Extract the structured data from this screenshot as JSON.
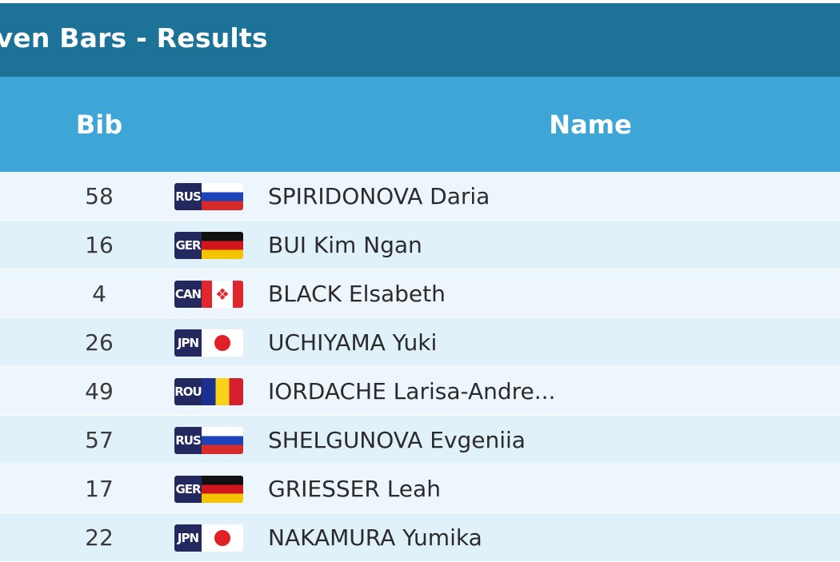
{
  "header": {
    "title": "even Bars - Results"
  },
  "table": {
    "columns": {
      "bib": "Bib",
      "name": "Name"
    },
    "rows": [
      {
        "bib": "58",
        "noc": "RUS",
        "flag": "rus",
        "name": "SPIRIDONOVA Daria"
      },
      {
        "bib": "16",
        "noc": "GER",
        "flag": "ger",
        "name": "BUI Kim Ngan"
      },
      {
        "bib": "4",
        "noc": "CAN",
        "flag": "can",
        "name": "BLACK Elsabeth"
      },
      {
        "bib": "26",
        "noc": "JPN",
        "flag": "jpn",
        "name": "UCHIYAMA Yuki"
      },
      {
        "bib": "49",
        "noc": "ROU",
        "flag": "rou",
        "name": "IORDACHE Larisa-Andre..."
      },
      {
        "bib": "57",
        "noc": "RUS",
        "flag": "rus",
        "name": "SHELGUNOVA Evgeniia"
      },
      {
        "bib": "17",
        "noc": "GER",
        "flag": "ger",
        "name": "GRIESSER Leah"
      },
      {
        "bib": "22",
        "noc": "JPN",
        "flag": "jpn",
        "name": "NAKAMURA Yumika"
      }
    ]
  },
  "colors": {
    "title_bar": "#1d7298",
    "column_header": "#3ea6d7",
    "row_odd": "#edf6fc",
    "row_even": "#e0f1fa",
    "noc_badge": "#23285e"
  },
  "icons": {
    "can": "maple-leaf-icon",
    "jpn": "red-disc-icon"
  }
}
